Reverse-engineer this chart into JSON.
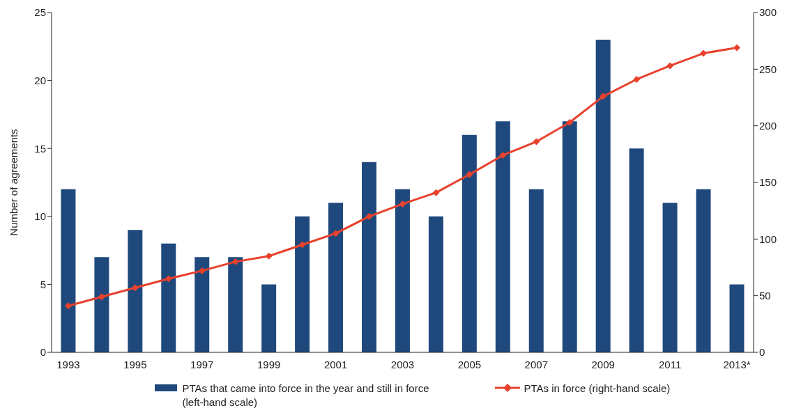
{
  "chart_data": {
    "type": "bar",
    "ylabel": "Number of agreements",
    "categories": [
      "1993",
      null,
      "1995",
      null,
      "1997",
      null,
      "1999",
      null,
      "2001",
      null,
      "2003",
      null,
      "2005",
      null,
      "2007",
      null,
      "2009",
      null,
      "2011",
      null,
      "2013*"
    ],
    "series": [
      {
        "name": "PTAs that came into force in the year and still in force (left-hand scale)",
        "color": "#1f497d",
        "values": [
          12,
          7,
          9,
          8,
          7,
          7,
          5,
          10,
          11,
          14,
          12,
          10,
          16,
          17,
          12,
          17,
          23,
          15,
          11,
          12,
          5
        ]
      },
      {
        "name": "PTAs in force (right-hand scale)",
        "type": "line",
        "axis": "y2",
        "color": "#e8412c",
        "marker": "diamond",
        "values": [
          41,
          49,
          57,
          65,
          72,
          80,
          85,
          95,
          105,
          120,
          131,
          141,
          157,
          174,
          186,
          203,
          226,
          241,
          253,
          264,
          269
        ]
      }
    ],
    "ylim": [
      0,
      25
    ],
    "yticks": [
      0,
      5,
      10,
      15,
      20,
      25
    ],
    "y2lim": [
      0,
      300
    ],
    "y2ticks": [
      0,
      50,
      100,
      150,
      200,
      250,
      300
    ],
    "grid": false,
    "legend": "bottom"
  }
}
